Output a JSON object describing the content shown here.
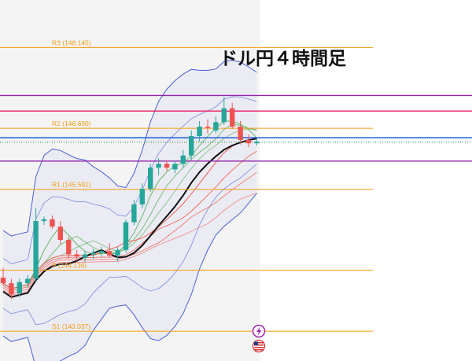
{
  "chart_data": {
    "type": "candlestick",
    "title": "ドル円４時間足",
    "ylim": [
      142.5,
      149.0
    ],
    "candles": [
      {
        "o": 144.0,
        "h": 144.18,
        "l": 143.85,
        "c": 143.9
      },
      {
        "o": 143.9,
        "h": 143.98,
        "l": 143.62,
        "c": 143.7
      },
      {
        "o": 143.72,
        "h": 143.98,
        "l": 143.65,
        "c": 143.92
      },
      {
        "o": 143.9,
        "h": 144.05,
        "l": 143.82,
        "c": 143.98
      },
      {
        "o": 143.98,
        "h": 145.25,
        "l": 143.92,
        "c": 145.02
      },
      {
        "o": 145.02,
        "h": 145.1,
        "l": 144.95,
        "c": 145.05
      },
      {
        "o": 145.05,
        "h": 145.12,
        "l": 144.88,
        "c": 144.92
      },
      {
        "o": 144.92,
        "h": 145.02,
        "l": 144.6,
        "c": 144.68
      },
      {
        "o": 144.68,
        "h": 144.74,
        "l": 144.35,
        "c": 144.42
      },
      {
        "o": 144.42,
        "h": 144.5,
        "l": 144.3,
        "c": 144.38
      },
      {
        "o": 144.36,
        "h": 144.48,
        "l": 144.28,
        "c": 144.42
      },
      {
        "o": 144.42,
        "h": 144.52,
        "l": 144.34,
        "c": 144.45
      },
      {
        "o": 144.45,
        "h": 144.56,
        "l": 144.38,
        "c": 144.48
      },
      {
        "o": 144.48,
        "h": 144.62,
        "l": 144.36,
        "c": 144.4
      },
      {
        "o": 144.4,
        "h": 144.55,
        "l": 144.3,
        "c": 144.5
      },
      {
        "o": 144.5,
        "h": 145.05,
        "l": 144.45,
        "c": 145.0
      },
      {
        "o": 145.0,
        "h": 145.4,
        "l": 144.95,
        "c": 145.32
      },
      {
        "o": 145.32,
        "h": 145.7,
        "l": 145.25,
        "c": 145.6
      },
      {
        "o": 145.6,
        "h": 146.05,
        "l": 145.55,
        "c": 145.98
      },
      {
        "o": 145.98,
        "h": 146.15,
        "l": 145.85,
        "c": 146.05
      },
      {
        "o": 146.05,
        "h": 146.12,
        "l": 145.92,
        "c": 145.98
      },
      {
        "o": 145.95,
        "h": 146.1,
        "l": 145.88,
        "c": 146.05
      },
      {
        "o": 146.05,
        "h": 146.3,
        "l": 145.98,
        "c": 146.2
      },
      {
        "o": 146.2,
        "h": 146.65,
        "l": 146.12,
        "c": 146.55
      },
      {
        "o": 146.55,
        "h": 146.82,
        "l": 146.45,
        "c": 146.72
      },
      {
        "o": 146.72,
        "h": 146.85,
        "l": 146.6,
        "c": 146.7
      },
      {
        "o": 146.65,
        "h": 146.9,
        "l": 146.6,
        "c": 146.8
      },
      {
        "o": 146.8,
        "h": 147.25,
        "l": 146.75,
        "c": 147.05
      },
      {
        "o": 147.05,
        "h": 147.15,
        "l": 146.68,
        "c": 146.72
      },
      {
        "o": 146.72,
        "h": 146.82,
        "l": 146.4,
        "c": 146.48
      },
      {
        "o": 146.48,
        "h": 146.58,
        "l": 146.35,
        "c": 146.42
      },
      {
        "o": 146.42,
        "h": 146.5,
        "l": 146.38,
        "c": 146.45
      }
    ],
    "pivot_levels": [
      {
        "label": "R3 (148.145)",
        "value": 148.145
      },
      {
        "label": "R2 (146.690)",
        "value": 146.69
      },
      {
        "label": "R1 (145.591)",
        "value": 145.591
      },
      {
        "label": "P (144.136)",
        "value": 144.136
      },
      {
        "label": "S1 (143.037)",
        "value": 143.037
      }
    ],
    "horizontal_lines": [
      {
        "value": 147.28,
        "color": "#8e24aa"
      },
      {
        "value": 147.0,
        "color": "#e91e63"
      },
      {
        "value": 146.52,
        "color": "#1e5fd6"
      },
      {
        "value": 146.44,
        "color": "#2e7d32",
        "dashed": true
      },
      {
        "value": 146.1,
        "color": "#8e24aa"
      }
    ],
    "colors": {
      "up": "#26a69a",
      "down": "#ef5350",
      "pivot": "#f39c12",
      "band": "#4a5fd6",
      "sma": "#111111",
      "ma_green": "#4caf50",
      "ma_red": "#f44336"
    }
  },
  "icons": [
    "lightning-icon",
    "us-flag-icon"
  ]
}
